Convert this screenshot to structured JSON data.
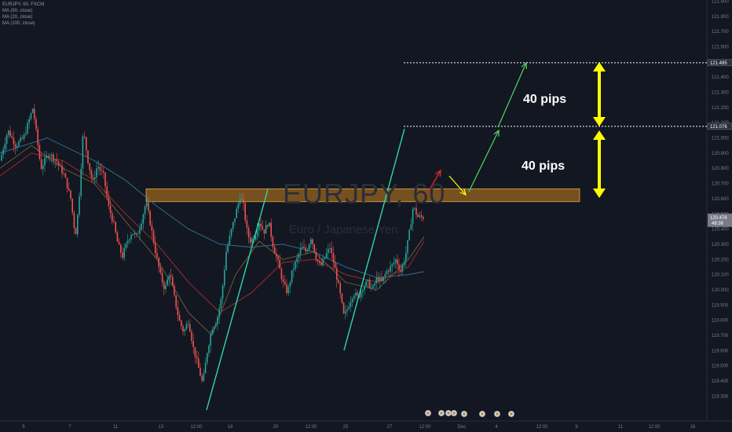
{
  "legend": {
    "symbol": "EURJPY, 60, FXCM",
    "ma1": "MA (50, close)",
    "ma2": "MA (20, close)",
    "ma3": "MA (100, close)"
  },
  "watermark": {
    "title": "EURJPY, 60",
    "subtitle": "Euro / Japanese Yen"
  },
  "annotations": {
    "pips_upper": "40 pips",
    "pips_lower": "40 pips"
  },
  "colors": {
    "background": "#131722",
    "candle_up": "#26a69a",
    "candle_down": "#ef5350",
    "ma50": "#9b2b2b",
    "ma20": "#6b5a3a",
    "ma100": "#2e6e8e",
    "trendline": "#2fd6b0",
    "zone": "#c8821e",
    "arrow_yellow": "#ffff00",
    "arrow_green": "#4cd964",
    "arrow_red": "#c62828",
    "price_tag": "#787b86"
  },
  "chart_data": {
    "type": "candlestick",
    "title": "EURJPY, 60, FXCM",
    "ylim": [
      119.25,
      121.9
    ],
    "y_ticks": [
      121.9,
      121.8,
      121.7,
      121.6,
      121.5,
      121.4,
      121.3,
      121.2,
      121.1,
      121.0,
      120.9,
      120.8,
      120.7,
      120.6,
      120.5,
      120.4,
      120.3,
      120.2,
      120.1,
      120.0,
      119.9,
      119.8,
      119.7,
      119.6,
      119.5,
      119.4,
      119.3
    ],
    "y_tick_labels": [
      "121.900",
      "121.800",
      "121.700",
      "121.600",
      "121.500",
      "121.400",
      "121.300",
      "121.200",
      "121.100",
      "121.000",
      "120.900",
      "120.800",
      "120.700",
      "120.600",
      "120.500",
      "120.400",
      "120.300",
      "120.200",
      "120.100",
      "120.000",
      "119.900",
      "119.800",
      "119.700",
      "119.600",
      "119.500",
      "119.400",
      "119.300"
    ],
    "x_labels": [
      "5",
      "7",
      "11",
      "13",
      "12:00",
      "18",
      "20",
      "12:00",
      "25",
      "27",
      "12:00",
      "Dec",
      "4",
      "12:00",
      "9",
      "11",
      "12:00",
      "16"
    ],
    "current_price": "120.476",
    "countdown": "48:38",
    "price_levels": [
      {
        "label": "121.495",
        "value": 121.495
      },
      {
        "label": "121.076",
        "value": 121.076
      }
    ],
    "series": [
      {
        "name": "MA (50, close)"
      },
      {
        "name": "MA (20, close)"
      },
      {
        "name": "MA (100, close)"
      }
    ],
    "price_path": [
      [
        0,
        120.85
      ],
      [
        10,
        121.05
      ],
      [
        20,
        120.95
      ],
      [
        30,
        121.0
      ],
      [
        42,
        121.2
      ],
      [
        52,
        120.8
      ],
      [
        62,
        120.9
      ],
      [
        72,
        120.85
      ],
      [
        82,
        120.75
      ],
      [
        90,
        120.6
      ],
      [
        96,
        120.35
      ],
      [
        100,
        120.55
      ],
      [
        106,
        121.05
      ],
      [
        112,
        120.85
      ],
      [
        118,
        120.7
      ],
      [
        124,
        120.82
      ],
      [
        132,
        120.75
      ],
      [
        138,
        120.55
      ],
      [
        144,
        120.45
      ],
      [
        150,
        120.3
      ],
      [
        156,
        120.22
      ],
      [
        162,
        120.32
      ],
      [
        168,
        120.38
      ],
      [
        174,
        120.35
      ],
      [
        180,
        120.45
      ],
      [
        186,
        120.58
      ],
      [
        192,
        120.42
      ],
      [
        198,
        120.25
      ],
      [
        204,
        120.1
      ],
      [
        210,
        120.0
      ],
      [
        216,
        120.12
      ],
      [
        222,
        119.95
      ],
      [
        228,
        119.8
      ],
      [
        234,
        119.72
      ],
      [
        240,
        119.8
      ],
      [
        246,
        119.62
      ],
      [
        252,
        119.5
      ],
      [
        258,
        119.38
      ],
      [
        264,
        119.6
      ],
      [
        270,
        119.75
      ],
      [
        276,
        119.8
      ],
      [
        282,
        119.95
      ],
      [
        288,
        120.25
      ],
      [
        294,
        120.38
      ],
      [
        300,
        120.5
      ],
      [
        306,
        120.62
      ],
      [
        310,
        120.55
      ],
      [
        314,
        120.4
      ],
      [
        318,
        120.32
      ],
      [
        324,
        120.35
      ],
      [
        330,
        120.45
      ],
      [
        336,
        120.38
      ],
      [
        342,
        120.45
      ],
      [
        348,
        120.28
      ],
      [
        354,
        120.18
      ],
      [
        360,
        120.05
      ],
      [
        366,
        119.98
      ],
      [
        372,
        120.12
      ],
      [
        378,
        120.2
      ],
      [
        384,
        120.28
      ],
      [
        390,
        120.25
      ],
      [
        396,
        120.35
      ],
      [
        402,
        120.22
      ],
      [
        408,
        120.15
      ],
      [
        414,
        120.22
      ],
      [
        420,
        120.28
      ],
      [
        426,
        120.15
      ],
      [
        432,
        120.0
      ],
      [
        438,
        119.82
      ],
      [
        444,
        119.9
      ],
      [
        450,
        119.98
      ],
      [
        456,
        119.95
      ],
      [
        462,
        120.02
      ],
      [
        468,
        120.05
      ],
      [
        474,
        120.0
      ],
      [
        480,
        120.08
      ],
      [
        486,
        120.05
      ],
      [
        492,
        120.12
      ],
      [
        498,
        120.15
      ],
      [
        504,
        120.2
      ],
      [
        510,
        120.12
      ],
      [
        516,
        120.22
      ],
      [
        522,
        120.4
      ],
      [
        526,
        120.55
      ],
      [
        532,
        120.48
      ],
      [
        540,
        120.476
      ]
    ],
    "ma50_path": [
      [
        0,
        120.75
      ],
      [
        40,
        120.9
      ],
      [
        80,
        120.85
      ],
      [
        120,
        120.72
      ],
      [
        160,
        120.5
      ],
      [
        200,
        120.3
      ],
      [
        240,
        120.05
      ],
      [
        280,
        119.85
      ],
      [
        320,
        119.98
      ],
      [
        360,
        120.18
      ],
      [
        400,
        120.2
      ],
      [
        440,
        120.1
      ],
      [
        480,
        120.05
      ],
      [
        520,
        120.15
      ],
      [
        540,
        120.32
      ]
    ],
    "ma20_path": [
      [
        0,
        120.8
      ],
      [
        40,
        120.95
      ],
      [
        80,
        120.8
      ],
      [
        120,
        120.7
      ],
      [
        160,
        120.45
      ],
      [
        200,
        120.2
      ],
      [
        240,
        119.85
      ],
      [
        270,
        119.7
      ],
      [
        300,
        120.1
      ],
      [
        330,
        120.32
      ],
      [
        360,
        120.2
      ],
      [
        400,
        120.25
      ],
      [
        440,
        120.05
      ],
      [
        480,
        120.0
      ],
      [
        520,
        120.2
      ],
      [
        540,
        120.35
      ]
    ],
    "ma100_path": [
      [
        0,
        120.9
      ],
      [
        60,
        121.0
      ],
      [
        120,
        120.85
      ],
      [
        160,
        120.72
      ],
      [
        200,
        120.55
      ],
      [
        240,
        120.4
      ],
      [
        280,
        120.3
      ],
      [
        320,
        120.28
      ],
      [
        360,
        120.3
      ],
      [
        400,
        120.25
      ],
      [
        440,
        120.15
      ],
      [
        480,
        120.08
      ],
      [
        520,
        120.1
      ],
      [
        540,
        120.12
      ]
    ]
  }
}
